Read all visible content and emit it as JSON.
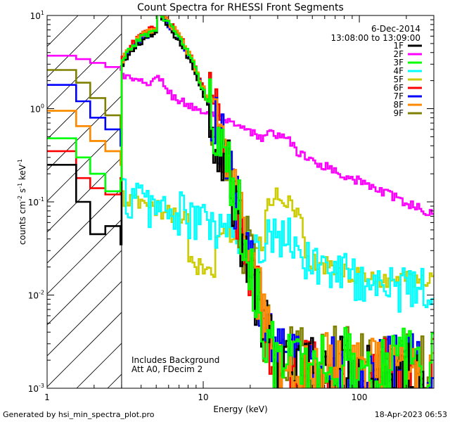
{
  "chart_data": {
    "type": "line",
    "title": "Count Spectra for RHESSI Front Segments",
    "xlabel": "Energy (keV)",
    "ylabel_parts": {
      "base": "counts cm",
      "exp1": "-2",
      "mid1": " s",
      "exp2": "-1",
      "mid2": " keV",
      "exp3": "-1"
    },
    "xscale": "log",
    "yscale": "log",
    "xlim": [
      1,
      300
    ],
    "ylim": [
      0.001,
      10
    ],
    "x_ticks": [
      {
        "v": 1,
        "label": "1"
      },
      {
        "v": 10,
        "label": "10"
      },
      {
        "v": 100,
        "label": "100"
      }
    ],
    "y_ticks": [
      {
        "v": 0.001,
        "base": "10",
        "exp": "-3"
      },
      {
        "v": 0.01,
        "base": "10",
        "exp": "-2"
      },
      {
        "v": 0.1,
        "base": "10",
        "exp": "-1"
      },
      {
        "v": 1,
        "base": "10",
        "exp": "0"
      },
      {
        "v": 10,
        "base": "10",
        "exp": "1"
      }
    ],
    "date": "6-Dec-2014",
    "time_range": "13:08:00 to 13:09:00",
    "hatch_xmax": 3.0,
    "annotations": [
      "Includes Background",
      "Att A0, FDecim 2"
    ],
    "series": [
      {
        "name": "1F",
        "color": "#000000",
        "peak": 6.2,
        "lowx": [
          1.3,
          1.6,
          2.0,
          2.5,
          2.9
        ],
        "lowy": [
          0.25,
          0.1,
          0.045,
          0.055,
          0.035
        ],
        "floor": 0.0025,
        "bg": 0
      },
      {
        "name": "2F",
        "color": "#ff00ff",
        "peak": 0,
        "lowx": [
          1.3,
          1.6,
          2.0,
          2.5,
          2.9
        ],
        "lowy": [
          3.7,
          3.4,
          3.1,
          2.8,
          2.6
        ],
        "floor": 0,
        "bg": 1
      },
      {
        "name": "3F",
        "color": "#00ff00",
        "peak": 6.8,
        "lowx": [
          1.3,
          1.6,
          2.0,
          2.5,
          2.9
        ],
        "lowy": [
          0.48,
          0.3,
          0.2,
          0.13,
          0.17
        ],
        "floor": 0.003,
        "bg": 0
      },
      {
        "name": "4F",
        "color": "#00ffff",
        "peak": 0,
        "lowx": [
          1.3,
          1.6,
          2.0,
          2.5,
          2.9
        ],
        "lowy": [
          0.48,
          0.3,
          0.2,
          0.13,
          0.17
        ],
        "floor": 0,
        "bg": 2
      },
      {
        "name": "5F",
        "color": "#cccc00",
        "peak": 0,
        "lowx": [
          1.3,
          1.6,
          2.0,
          2.5,
          2.9
        ],
        "lowy": [
          0.95,
          0.65,
          0.45,
          0.35,
          0.25
        ],
        "floor": 0,
        "bg": 3
      },
      {
        "name": "6F",
        "color": "#ff0000",
        "peak": 7.2,
        "lowx": [
          1.3,
          1.6,
          2.0,
          2.5,
          2.9
        ],
        "lowy": [
          0.35,
          0.18,
          0.14,
          0.12,
          0.18
        ],
        "floor": 0.0022,
        "bg": 0
      },
      {
        "name": "7F",
        "color": "#0000ff",
        "peak": 6.5,
        "lowx": [
          1.3,
          1.6,
          2.0,
          2.5,
          2.9
        ],
        "lowy": [
          1.8,
          1.2,
          0.8,
          0.6,
          0.4
        ],
        "floor": 0.0028,
        "bg": 0
      },
      {
        "name": "8F",
        "color": "#ff8800",
        "peak": 7.0,
        "lowx": [
          1.3,
          1.6,
          2.0,
          2.5,
          2.9
        ],
        "lowy": [
          0.95,
          0.65,
          0.45,
          0.35,
          0.25
        ],
        "floor": 0.0026,
        "bg": 0
      },
      {
        "name": "9F",
        "color": "#808000",
        "peak": 6.6,
        "lowx": [
          1.3,
          1.6,
          2.0,
          2.5,
          2.9
        ],
        "lowy": [
          2.6,
          1.9,
          1.3,
          0.85,
          0.55
        ],
        "floor": 0.003,
        "bg": 0
      }
    ]
  },
  "footer": {
    "generated_by": "Generated by hsi_min_spectra_plot.pro",
    "timestamp": "18-Apr-2023 06:53"
  }
}
